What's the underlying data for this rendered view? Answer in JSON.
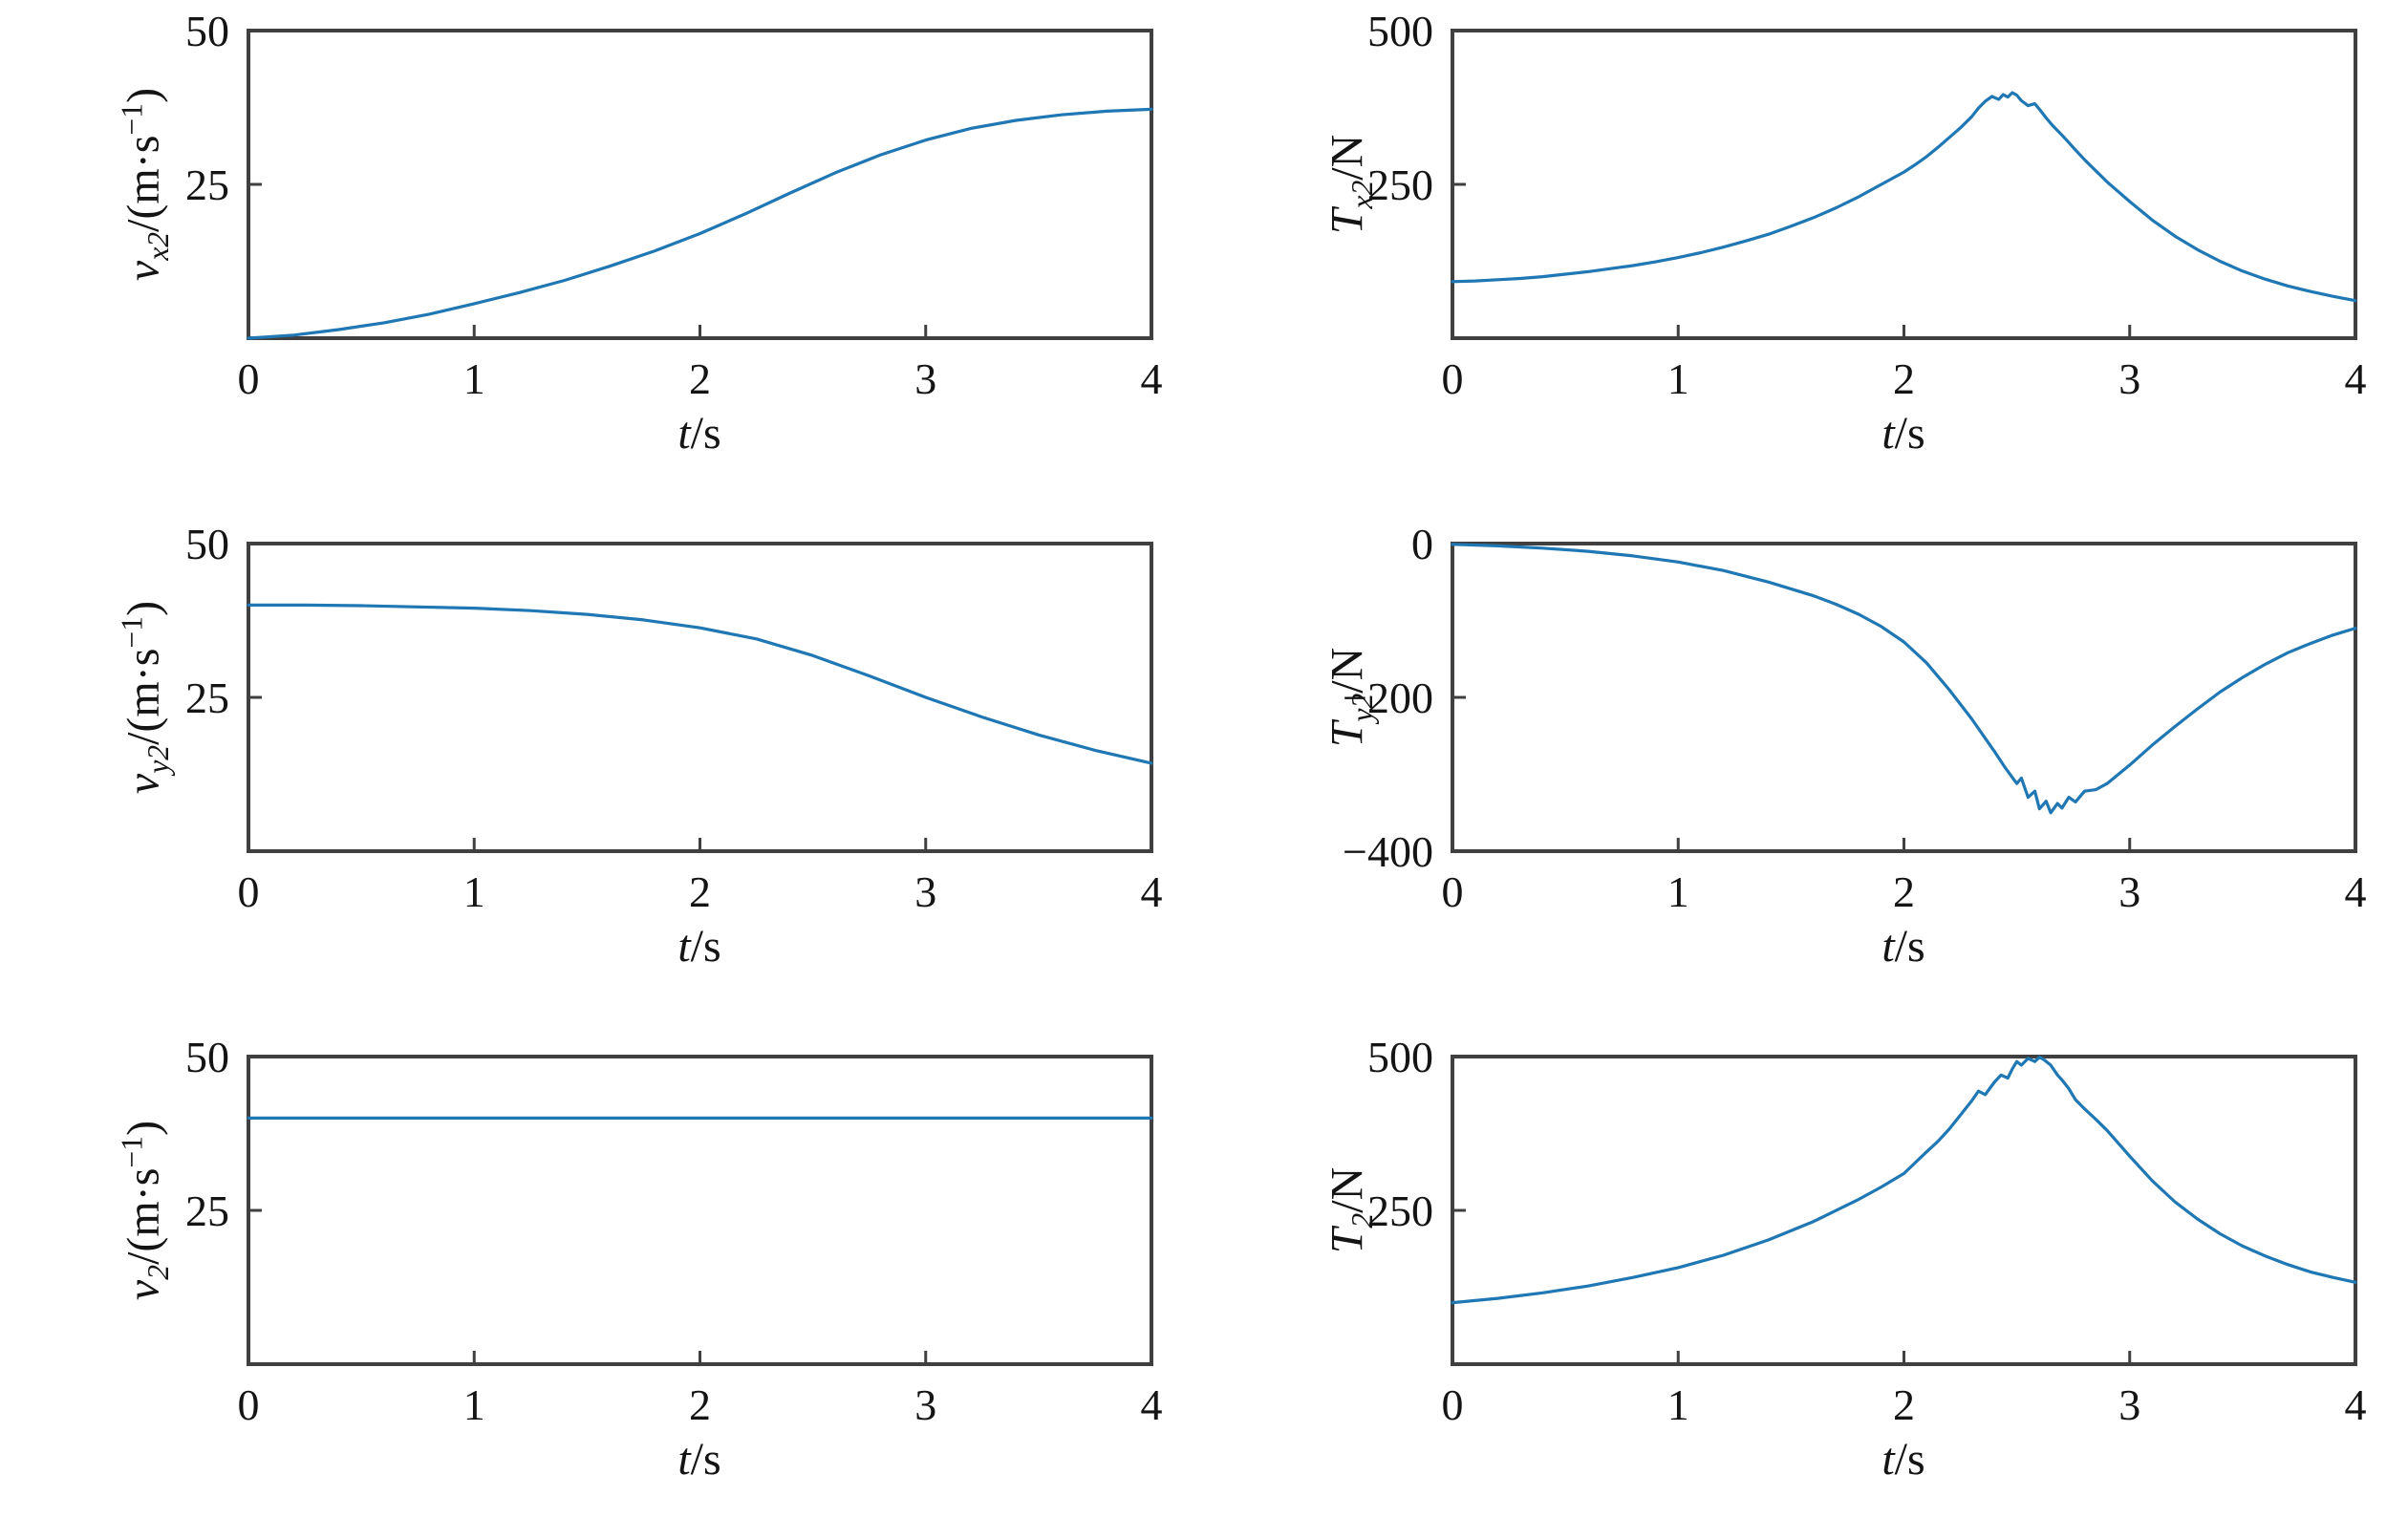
{
  "style": {
    "line_color": "#1f77b4",
    "axis_color": "#404040",
    "text_color": "#141414",
    "background": "#ffffff"
  },
  "chart_data": [
    {
      "type": "line",
      "name": "v_x2_vs_t",
      "title": "",
      "ylabel": {
        "var": "v",
        "sub": "x2",
        "unit_pre": "/(m·s",
        "sup": "−1",
        "unit_post": ")"
      },
      "xlabel": {
        "var": "t",
        "unit": "/s"
      },
      "xlim": [
        0,
        4
      ],
      "ylim": [
        0,
        50
      ],
      "xticks": [
        0,
        1,
        2,
        3,
        4
      ],
      "xtick_labels": [
        "0",
        "1",
        "2",
        "3",
        "4"
      ],
      "yticks": [
        0,
        25,
        50
      ],
      "ytick_labels": [
        "",
        "25",
        "50"
      ],
      "grid": false,
      "legend": false,
      "x": [
        0,
        0.2,
        0.4,
        0.6,
        0.8,
        1.0,
        1.2,
        1.4,
        1.6,
        1.8,
        2.0,
        2.2,
        2.4,
        2.6,
        2.8,
        3.0,
        3.2,
        3.4,
        3.6,
        3.8,
        4.0
      ],
      "y": [
        0,
        0.5,
        1.4,
        2.5,
        3.9,
        5.6,
        7.4,
        9.4,
        11.7,
        14.2,
        17.0,
        20.2,
        23.6,
        26.9,
        29.8,
        32.2,
        34.1,
        35.4,
        36.3,
        36.9,
        37.2
      ]
    },
    {
      "type": "line",
      "name": "T_x2_vs_t",
      "title": "",
      "ylabel": {
        "var": "T",
        "sub": "x2",
        "unit_pre": "/N",
        "sup": "",
        "unit_post": ""
      },
      "xlabel": {
        "var": "t",
        "unit": "/s"
      },
      "xlim": [
        0,
        4
      ],
      "ylim": [
        0,
        500
      ],
      "xticks": [
        0,
        1,
        2,
        3,
        4
      ],
      "xtick_labels": [
        "0",
        "1",
        "2",
        "3",
        "4"
      ],
      "yticks": [
        0,
        250,
        500
      ],
      "ytick_labels": [
        "",
        "250",
        "500"
      ],
      "grid": false,
      "legend": false,
      "x": [
        0,
        0.1,
        0.2,
        0.3,
        0.4,
        0.5,
        0.6,
        0.7,
        0.8,
        0.9,
        1.0,
        1.1,
        1.2,
        1.3,
        1.4,
        1.5,
        1.6,
        1.7,
        1.8,
        1.9,
        2.0,
        2.05,
        2.1,
        2.15,
        2.2,
        2.25,
        2.3,
        2.33,
        2.36,
        2.39,
        2.42,
        2.44,
        2.46,
        2.48,
        2.5,
        2.52,
        2.55,
        2.58,
        2.6,
        2.63,
        2.66,
        2.7,
        2.73,
        2.76,
        2.8,
        2.85,
        2.9,
        3.0,
        3.1,
        3.2,
        3.3,
        3.4,
        3.5,
        3.6,
        3.7,
        3.8,
        3.9,
        4.0
      ],
      "y": [
        92,
        93,
        95,
        97,
        100,
        104,
        108,
        113,
        118,
        124,
        131,
        139,
        148,
        158,
        169,
        182,
        196,
        212,
        230,
        250,
        270,
        282,
        295,
        310,
        326,
        342,
        360,
        374,
        385,
        393,
        388,
        396,
        392,
        399,
        395,
        386,
        378,
        381,
        372,
        358,
        345,
        330,
        318,
        306,
        290,
        272,
        254,
        222,
        192,
        166,
        144,
        125,
        109,
        96,
        85,
        76,
        68,
        61
      ]
    },
    {
      "type": "line",
      "name": "v_y2_vs_t",
      "title": "",
      "ylabel": {
        "var": "v",
        "sub": "y2",
        "unit_pre": "/(m·s",
        "sup": "−1",
        "unit_post": ")"
      },
      "xlabel": {
        "var": "t",
        "unit": "/s"
      },
      "xlim": [
        0,
        4
      ],
      "ylim": [
        0,
        50
      ],
      "xticks": [
        0,
        1,
        2,
        3,
        4
      ],
      "xtick_labels": [
        "0",
        "1",
        "2",
        "3",
        "4"
      ],
      "yticks": [
        0,
        25,
        50
      ],
      "ytick_labels": [
        "",
        "25",
        "50"
      ],
      "grid": false,
      "legend": false,
      "x": [
        0,
        0.25,
        0.5,
        0.75,
        1.0,
        1.25,
        1.5,
        1.75,
        2.0,
        2.25,
        2.5,
        2.75,
        3.0,
        3.25,
        3.5,
        3.75,
        4.0
      ],
      "y": [
        40,
        40,
        39.9,
        39.7,
        39.5,
        39.1,
        38.5,
        37.6,
        36.3,
        34.5,
        31.8,
        28.5,
        25.0,
        21.8,
        18.9,
        16.4,
        14.3
      ]
    },
    {
      "type": "line",
      "name": "T_y2_vs_t",
      "title": "",
      "ylabel": {
        "var": "T",
        "sub": "y2",
        "unit_pre": "/N",
        "sup": "",
        "unit_post": ""
      },
      "xlabel": {
        "var": "t",
        "unit": "/s"
      },
      "xlim": [
        0,
        4
      ],
      "ylim": [
        -400,
        0
      ],
      "xticks": [
        0,
        1,
        2,
        3,
        4
      ],
      "xtick_labels": [
        "0",
        "1",
        "2",
        "3",
        "4"
      ],
      "yticks": [
        -400,
        -200,
        0
      ],
      "ytick_labels": [
        "−400",
        "−200",
        "0"
      ],
      "grid": false,
      "legend": false,
      "x": [
        0,
        0.2,
        0.4,
        0.6,
        0.8,
        1.0,
        1.2,
        1.4,
        1.6,
        1.7,
        1.8,
        1.9,
        2.0,
        2.1,
        2.2,
        2.3,
        2.4,
        2.45,
        2.5,
        2.52,
        2.55,
        2.58,
        2.6,
        2.63,
        2.65,
        2.68,
        2.7,
        2.73,
        2.76,
        2.8,
        2.85,
        2.9,
        3.0,
        3.1,
        3.2,
        3.3,
        3.4,
        3.5,
        3.6,
        3.7,
        3.8,
        3.9,
        4.0
      ],
      "y": [
        -1,
        -3,
        -6,
        -10,
        -16,
        -24,
        -35,
        -50,
        -68,
        -79,
        -92,
        -108,
        -128,
        -155,
        -190,
        -228,
        -270,
        -292,
        -312,
        -305,
        -330,
        -322,
        -345,
        -335,
        -350,
        -338,
        -344,
        -330,
        -336,
        -322,
        -320,
        -312,
        -288,
        -262,
        -238,
        -215,
        -193,
        -174,
        -157,
        -142,
        -130,
        -119,
        -110
      ]
    },
    {
      "type": "line",
      "name": "v_2_vs_t",
      "title": "",
      "ylabel": {
        "var": "v",
        "sub": "2",
        "unit_pre": "/(m·s",
        "sup": "−1",
        "unit_post": ")"
      },
      "xlabel": {
        "var": "t",
        "unit": "/s"
      },
      "xlim": [
        0,
        4
      ],
      "ylim": [
        0,
        50
      ],
      "xticks": [
        0,
        1,
        2,
        3,
        4
      ],
      "xtick_labels": [
        "0",
        "1",
        "2",
        "3",
        "4"
      ],
      "yticks": [
        0,
        25,
        50
      ],
      "ytick_labels": [
        "",
        "25",
        "50"
      ],
      "grid": false,
      "legend": false,
      "x": [
        0,
        0.5,
        1.0,
        1.5,
        2.0,
        2.5,
        3.0,
        3.5,
        4.0
      ],
      "y": [
        40,
        40,
        40,
        40,
        40,
        40,
        40,
        40,
        40
      ]
    },
    {
      "type": "line",
      "name": "T_2_vs_t",
      "title": "",
      "ylabel": {
        "var": "T",
        "sub": "2",
        "unit_pre": "/N",
        "sup": "",
        "unit_post": ""
      },
      "xlabel": {
        "var": "t",
        "unit": "/s"
      },
      "xlim": [
        0,
        4
      ],
      "ylim": [
        0,
        500
      ],
      "xticks": [
        0,
        1,
        2,
        3,
        4
      ],
      "xtick_labels": [
        "0",
        "1",
        "2",
        "3",
        "4"
      ],
      "yticks": [
        0,
        250,
        500
      ],
      "ytick_labels": [
        "",
        "250",
        "500"
      ],
      "grid": false,
      "legend": false,
      "x": [
        0,
        0.2,
        0.4,
        0.6,
        0.8,
        1.0,
        1.2,
        1.4,
        1.6,
        1.8,
        1.9,
        2.0,
        2.1,
        2.15,
        2.2,
        2.25,
        2.3,
        2.33,
        2.36,
        2.4,
        2.43,
        2.46,
        2.48,
        2.5,
        2.52,
        2.55,
        2.58,
        2.6,
        2.62,
        2.65,
        2.68,
        2.7,
        2.73,
        2.76,
        2.8,
        2.85,
        2.9,
        3.0,
        3.1,
        3.2,
        3.3,
        3.4,
        3.5,
        3.6,
        3.7,
        3.8,
        3.9,
        4.0
      ],
      "y": [
        100,
        107,
        116,
        127,
        141,
        157,
        177,
        202,
        232,
        268,
        288,
        310,
        345,
        362,
        382,
        405,
        428,
        444,
        438,
        458,
        470,
        465,
        480,
        492,
        486,
        497,
        492,
        499,
        495,
        486,
        470,
        462,
        448,
        430,
        415,
        398,
        380,
        338,
        298,
        264,
        236,
        212,
        192,
        176,
        162,
        150,
        141,
        133
      ]
    }
  ]
}
